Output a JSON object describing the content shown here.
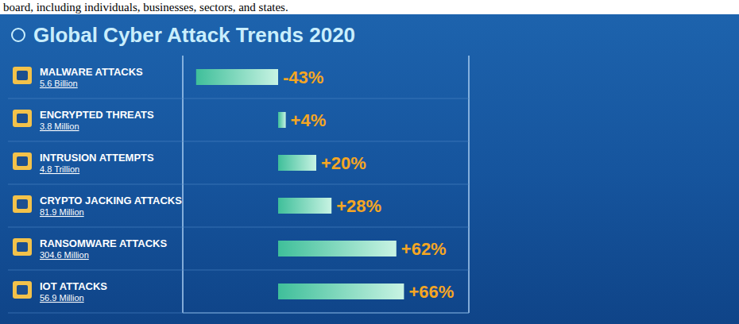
{
  "page_text": "board, including individuals, businesses, sectors, and states.",
  "chart_data": {
    "type": "bar",
    "orientation": "horizontal",
    "title": "Global Cyber Attack Trends 2020",
    "categories": [
      "MALWARE ATTACKS",
      "ENCRYPTED THREATS",
      "INTRUSION ATTEMPTS",
      "CRYPTO JACKING ATTACKS",
      "RANSOMWARE ATTACKS",
      "IOT ATTACKS"
    ],
    "count_labels": [
      "5.6 Billion",
      "3.8 Million",
      "4.8 Trillion",
      "81.9 Million",
      "304.6 Million",
      "56.9 Million"
    ],
    "values": [
      -43,
      4,
      20,
      28,
      62,
      66
    ],
    "value_labels": [
      "-43%",
      "+4%",
      "+20%",
      "+28%",
      "+62%",
      "+66%"
    ],
    "data_labels": true,
    "color": "#3fbf9a",
    "xlim": [
      -50,
      100
    ],
    "xticks": [
      0
    ],
    "grid": true,
    "tick_labels": false
  }
}
